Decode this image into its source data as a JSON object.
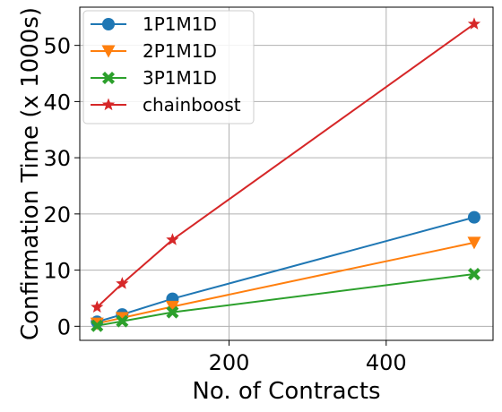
{
  "chart_data": {
    "type": "line",
    "xlabel": "No. of Contracts",
    "ylabel": "Confirmation Time (x 1000s)",
    "xlim": [
      10,
      536
    ],
    "ylim": [
      -2.5,
      56.8
    ],
    "xticks": [
      200,
      400
    ],
    "yticks": [
      0,
      10,
      20,
      30,
      40,
      50
    ],
    "grid": true,
    "legend_position": "top-left",
    "series": [
      {
        "name": "1P1M1D",
        "color": "#1f77b4",
        "marker": "circle",
        "x": [
          32,
          64,
          128,
          512
        ],
        "y": [
          0.8,
          2.1,
          4.9,
          19.4
        ]
      },
      {
        "name": "2P1M1D",
        "color": "#ff7f0e",
        "marker": "triangle-down",
        "x": [
          32,
          64,
          128,
          512
        ],
        "y": [
          0.5,
          1.5,
          3.5,
          14.9
        ]
      },
      {
        "name": "3P1M1D",
        "color": "#2ca02c",
        "marker": "x-filled",
        "x": [
          32,
          64,
          128,
          512
        ],
        "y": [
          0.1,
          0.9,
          2.5,
          9.3
        ]
      },
      {
        "name": "chainboost",
        "color": "#d62728",
        "marker": "star",
        "x": [
          32,
          64,
          128,
          512
        ],
        "y": [
          3.4,
          7.6,
          15.4,
          53.8
        ]
      }
    ]
  }
}
